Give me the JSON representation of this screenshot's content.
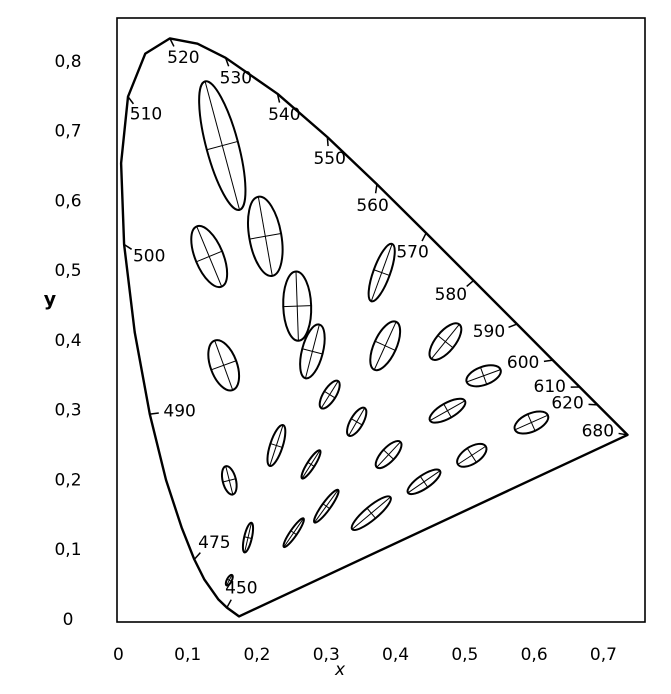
{
  "chart_data": {
    "type": "chromaticity",
    "x_label": "x",
    "y_label": "y",
    "xlim": [
      -0.002,
      0.76
    ],
    "ylim": [
      -0.003,
      0.863
    ],
    "xticks": [
      0,
      {
        "value": 0.1,
        "label": "0,1"
      },
      {
        "value": 0.2,
        "label": "0,2"
      },
      {
        "value": 0.3,
        "label": "0,3"
      },
      {
        "value": 0.4,
        "label": "0,4"
      },
      {
        "value": 0.5,
        "label": "0,5"
      },
      {
        "value": 0.6,
        "label": "0,6"
      },
      {
        "value": 0.7,
        "label": "0,7"
      }
    ],
    "yticks": [
      0,
      {
        "value": 0.1,
        "label": "0,1"
      },
      {
        "value": 0.2,
        "label": "0,2"
      },
      {
        "value": 0.3,
        "label": "0,3"
      },
      {
        "value": 0.4,
        "label": "0,4"
      },
      {
        "value": 0.5,
        "label": "0,5"
      },
      {
        "value": 0.6,
        "label": "0,6"
      },
      {
        "value": 0.7,
        "label": "0,7"
      },
      {
        "value": 0.8,
        "label": "0,8"
      }
    ],
    "color": "#000000",
    "spectral_locus": {
      "wavelengths": [
        null,
        450,
        null,
        null,
        475,
        null,
        null,
        490,
        null,
        500,
        null,
        510,
        null,
        520,
        null,
        530,
        540,
        550,
        560,
        570,
        580,
        590,
        600,
        610,
        620,
        680
      ],
      "x": [
        0.1741,
        0.1566,
        0.144,
        0.1241,
        0.1096,
        0.0913,
        0.0687,
        0.0454,
        0.0235,
        0.0082,
        0.0039,
        0.0139,
        0.0389,
        0.0743,
        0.1142,
        0.1547,
        0.2296,
        0.3016,
        0.3731,
        0.4441,
        0.5125,
        0.5752,
        0.627,
        0.6658,
        0.6915,
        0.7347
      ],
      "y": [
        0.005,
        0.0177,
        0.0297,
        0.0578,
        0.0868,
        0.1327,
        0.2007,
        0.295,
        0.4127,
        0.5384,
        0.6548,
        0.7502,
        0.812,
        0.8338,
        0.8262,
        0.8059,
        0.7543,
        0.6923,
        0.6245,
        0.5547,
        0.4866,
        0.4242,
        0.3725,
        0.334,
        0.3083,
        0.2653
      ]
    },
    "ellipses": {
      "x": [
        0.16,
        0.187,
        0.253,
        0.15,
        0.131,
        0.212,
        0.258,
        0.152,
        0.28,
        0.38,
        0.16,
        0.228,
        0.305,
        0.385,
        0.472,
        0.527,
        0.475,
        0.51,
        0.596,
        0.344,
        0.39,
        0.441,
        0.278,
        0.3,
        0.365
      ],
      "y": [
        0.057,
        0.118,
        0.125,
        0.68,
        0.521,
        0.55,
        0.45,
        0.365,
        0.385,
        0.498,
        0.2,
        0.25,
        0.323,
        0.393,
        0.399,
        0.35,
        0.3,
        0.236,
        0.283,
        0.284,
        0.237,
        0.198,
        0.223,
        0.163,
        0.153
      ],
      "a": [
        0.0085,
        0.022,
        0.025,
        0.096,
        0.047,
        0.058,
        0.05,
        0.038,
        0.04,
        0.044,
        0.021,
        0.031,
        0.023,
        0.038,
        0.032,
        0.026,
        0.029,
        0.024,
        0.026,
        0.023,
        0.025,
        0.028,
        0.024,
        0.029,
        0.036
      ],
      "b": [
        0.0035,
        0.0055,
        0.005,
        0.023,
        0.02,
        0.023,
        0.02,
        0.019,
        0.015,
        0.012,
        0.0095,
        0.009,
        0.009,
        0.016,
        0.014,
        0.013,
        0.011,
        0.012,
        0.013,
        0.009,
        0.01,
        0.0095,
        0.0055,
        0.006,
        0.0095
      ],
      "angle": [
        62.5,
        77,
        55.5,
        105,
        112.5,
        100,
        92,
        110,
        75.5,
        70,
        104,
        72,
        58,
        65.5,
        51,
        20,
        29.5,
        33,
        24,
        60,
        47,
        34.5,
        57.5,
        54,
        40
      ]
    }
  }
}
